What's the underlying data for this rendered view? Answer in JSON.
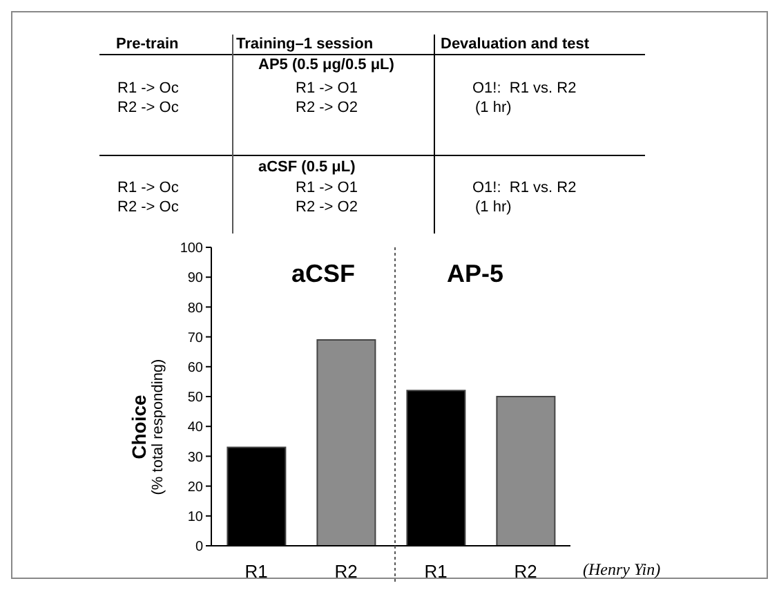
{
  "chart_data": {
    "type": "bar",
    "ylabel": "Choice\n(% total responding)",
    "categories": [
      "R1",
      "R2",
      "R1",
      "R2"
    ],
    "values": [
      33,
      69,
      52,
      50
    ],
    "colors": [
      "#000000",
      "#8c8c8c",
      "#000000",
      "#8c8c8c"
    ],
    "ylim": [
      0,
      100
    ],
    "yticks": [
      0,
      10,
      20,
      30,
      40,
      50,
      60,
      70,
      80,
      90,
      100
    ],
    "annotations": [
      "Pre-train",
      "Training–1 session",
      "Devaluation and test",
      "AP5 (0.5 μg/0.5 μL)",
      "R1 -> Oc",
      "R2 -> Oc",
      "R1 -> O1",
      "R2 -> O2",
      "O1!:  R1 vs. R2",
      "(1 hr)",
      "aCSF (0.5 μL)",
      "R1 -> Oc",
      "R2 -> Oc",
      "R1 -> O1",
      "R2 -> O2",
      "O1!:  R1 vs. R2",
      "(1 hr)",
      "aCSF",
      "AP-5",
      "(Henry Yin)"
    ]
  }
}
